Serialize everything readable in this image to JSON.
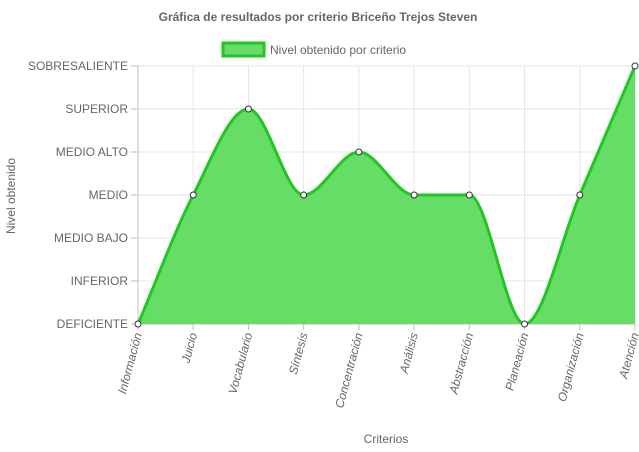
{
  "chart_data": {
    "type": "area",
    "title": "Gráfica de resultados por criterio Briceño Trejos Steven",
    "xlabel": "Criterios",
    "ylabel": "Nivel obtenido",
    "categories": [
      "Información",
      "Juicio",
      "Vocabulario",
      "Síntesis",
      "Concentración",
      "Análisis",
      "Abstracción",
      "Planeación",
      "Organización",
      "Atención"
    ],
    "y_levels": [
      "DEFICIENTE",
      "INFERIOR",
      "MEDIO BAJO",
      "MEDIO",
      "MEDIO ALTO",
      "SUPERIOR",
      "SOBRESALIENTE"
    ],
    "ylim": [
      0,
      6
    ],
    "grid": true,
    "legend_position": "top",
    "series": [
      {
        "name": "Nivel obtenido por criterio",
        "values": [
          0,
          3,
          5,
          3,
          4,
          3,
          3,
          0,
          3,
          6
        ],
        "fill_color": "#66dd66",
        "line_color": "#22c622"
      }
    ]
  }
}
